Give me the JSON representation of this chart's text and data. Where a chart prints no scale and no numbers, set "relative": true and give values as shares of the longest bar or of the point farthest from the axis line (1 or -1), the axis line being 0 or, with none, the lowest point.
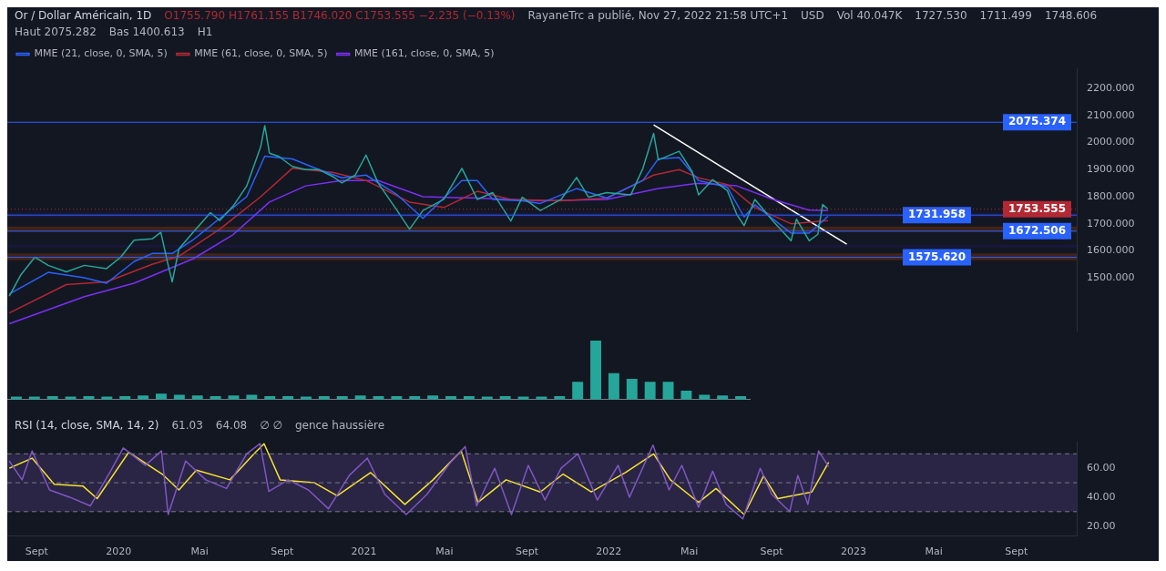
{
  "chart_data": [
    {
      "type": "line",
      "title": "Or / Dollar Américain, 1D",
      "subtitle": "O1755.790 H1761.155 B1746.020 C1753.555 −2.235 (−0.13%)",
      "annotations": [
        "RayaneTrc a publié, Nov 27, 2022 21:58 UTC+1",
        "USD",
        "Vol 40.047K",
        "1727.530",
        "1711.499",
        "1748.606",
        "Haut 2075.282",
        "Bas 1400.613",
        "H1"
      ],
      "xlim": [
        "2019-07-19",
        "2023-11-30"
      ],
      "ylim": [
        1300,
        2275
      ],
      "yticks": [
        {
          "value": 1500,
          "label": "1500.000"
        },
        {
          "value": 1600,
          "label": "1600.000"
        },
        {
          "value": 1700,
          "label": "1700.000"
        },
        {
          "value": 1800,
          "label": "1800.000"
        },
        {
          "value": 1900,
          "label": "1900.000"
        },
        {
          "value": 2000,
          "label": "2000.000"
        },
        {
          "value": 2100,
          "label": "2100.000"
        },
        {
          "value": 2200,
          "label": "2200.000"
        }
      ],
      "tick_labels": "y",
      "legend": "top left",
      "series": [
        {
          "color": "#26a69a",
          "x": [
            "2019-07-22",
            "2019-08-08",
            "2019-08-29",
            "2019-09-18",
            "2019-10-15",
            "2019-11-11",
            "2019-12-14",
            "2020-01-04",
            "2020-01-24",
            "2020-02-20",
            "2020-03-04",
            "2020-03-15",
            "2020-03-21",
            "2020-03-31",
            "2020-04-21",
            "2020-05-17",
            "2020-05-31",
            "2020-06-20",
            "2020-07-10",
            "2020-07-31",
            "2020-08-06",
            "2020-08-13",
            "2020-08-27",
            "2020-09-16",
            "2020-10-06",
            "2020-10-26",
            "2020-11-15",
            "2020-11-29",
            "2020-12-19",
            "2021-01-04",
            "2021-01-22",
            "2021-02-18",
            "2021-03-10",
            "2021-03-30",
            "2021-04-30",
            "2021-05-27",
            "2021-06-19",
            "2021-07-12",
            "2021-08-08",
            "2021-08-25",
            "2021-09-21",
            "2021-10-22",
            "2021-11-14",
            "2021-12-02",
            "2021-12-29",
            "2022-02-03",
            "2022-02-21",
            "2022-03-09",
            "2022-03-16",
            "2022-04-16",
            "2022-05-05",
            "2022-05-15",
            "2022-06-05",
            "2022-06-27",
            "2022-07-11",
            "2022-07-22",
            "2022-08-07",
            "2022-09-03",
            "2022-09-30",
            "2022-10-08",
            "2022-10-27",
            "2022-11-09",
            "2022-11-16",
            "2022-11-24"
          ],
          "values": [
            1432,
            1510,
            1576,
            1546,
            1522,
            1546,
            1534,
            1576,
            1639,
            1644,
            1668,
            1546,
            1485,
            1607,
            1668,
            1741,
            1712,
            1766,
            1839,
            1985,
            2063,
            1961,
            1949,
            1912,
            1900,
            1900,
            1875,
            1851,
            1880,
            1954,
            1851,
            1754,
            1680,
            1749,
            1790,
            1905,
            1790,
            1815,
            1710,
            1798,
            1749,
            1790,
            1871,
            1798,
            1815,
            1807,
            1905,
            2034,
            1936,
            1968,
            1895,
            1807,
            1863,
            1822,
            1734,
            1693,
            1790,
            1710,
            1637,
            1717,
            1637,
            1661,
            1771,
            1753.6
          ]
        },
        {
          "name": "MME (21, close, 0, SMA, 5)",
          "color": "#2962ff",
          "x": [
            "2019-07-22",
            "2019-09-18",
            "2019-11-11",
            "2019-12-14",
            "2020-01-24",
            "2020-02-20",
            "2020-03-21",
            "2020-04-21",
            "2020-05-31",
            "2020-07-10",
            "2020-08-06",
            "2020-09-16",
            "2020-10-26",
            "2020-11-29",
            "2021-01-04",
            "2021-02-18",
            "2021-03-30",
            "2021-05-27",
            "2021-06-19",
            "2021-07-12",
            "2021-08-25",
            "2021-09-21",
            "2021-11-14",
            "2021-12-29",
            "2022-02-21",
            "2022-03-16",
            "2022-04-16",
            "2022-05-15",
            "2022-06-27",
            "2022-07-22",
            "2022-08-07",
            "2022-09-30",
            "2022-10-27",
            "2022-11-24"
          ],
          "values": [
            1440,
            1520,
            1500,
            1480,
            1560,
            1590,
            1590,
            1640,
            1720,
            1800,
            1950,
            1940,
            1900,
            1870,
            1880,
            1810,
            1720,
            1860,
            1860,
            1790,
            1785,
            1775,
            1830,
            1795,
            1860,
            1940,
            1945,
            1860,
            1835,
            1725,
            1770,
            1665,
            1665,
            1727.5
          ]
        },
        {
          "name": "MME (61, close, 0, SMA, 5)",
          "color": "#b22833",
          "x": [
            "2019-07-22",
            "2019-10-15",
            "2019-12-14",
            "2020-02-20",
            "2020-03-31",
            "2020-05-31",
            "2020-07-31",
            "2020-09-16",
            "2020-11-15",
            "2021-01-04",
            "2021-03-10",
            "2021-04-30",
            "2021-06-19",
            "2021-08-08",
            "2021-10-22",
            "2021-12-29",
            "2022-03-09",
            "2022-04-16",
            "2022-05-15",
            "2022-06-27",
            "2022-08-07",
            "2022-09-30",
            "2022-11-24"
          ],
          "values": [
            1370,
            1475,
            1485,
            1550,
            1580,
            1680,
            1800,
            1905,
            1890,
            1860,
            1780,
            1760,
            1820,
            1790,
            1785,
            1795,
            1880,
            1900,
            1870,
            1845,
            1760,
            1700,
            1711.5
          ]
        },
        {
          "name": "MME (161, close, 0, SMA, 5)",
          "color": "#7b2ff7",
          "x": [
            "2019-07-22",
            "2019-11-11",
            "2020-01-24",
            "2020-04-21",
            "2020-06-20",
            "2020-08-13",
            "2020-10-06",
            "2020-11-29",
            "2021-01-22",
            "2021-03-30",
            "2021-06-19",
            "2021-09-21",
            "2021-12-29",
            "2022-03-16",
            "2022-05-15",
            "2022-07-11",
            "2022-09-03",
            "2022-10-27",
            "2022-11-24"
          ],
          "values": [
            1330,
            1430,
            1480,
            1570,
            1660,
            1780,
            1840,
            1860,
            1860,
            1800,
            1795,
            1785,
            1790,
            1830,
            1850,
            1840,
            1790,
            1750,
            1748.6
          ]
        },
        {
          "color": "#ffffff",
          "x": [
            "2022-03-09",
            "2022-12-22"
          ],
          "values": [
            2066,
            1624
          ]
        }
      ],
      "bands": [
        {
          "axis": "y",
          "from": 1670,
          "to": 1690,
          "color": "#e65100"
        },
        {
          "axis": "y",
          "from": 1565,
          "to": 1590,
          "color": "#e65100"
        },
        {
          "axis": "y",
          "from": 1722,
          "to": 1740,
          "color": "#311b92"
        },
        {
          "axis": "y",
          "from": 1612,
          "to": 1622,
          "color": "#311b92"
        }
      ],
      "ref_lines": [
        {
          "axis": "y",
          "value": 2075.374,
          "label": "2075.374",
          "color": "#2962ff",
          "line_style": "solid"
        },
        {
          "axis": "y",
          "value": 1731.958,
          "label": "1731.958",
          "color": "#2962ff",
          "line_style": "solid"
        },
        {
          "axis": "y",
          "value": 1672.506,
          "label": "1672.506",
          "color": "#2962ff",
          "line_style": "solid"
        },
        {
          "axis": "y",
          "value": 1575.62,
          "label": "1575.620",
          "color": "#2962ff",
          "line_style": "solid"
        },
        {
          "axis": "y",
          "value": 1753.555,
          "label": "1753.555",
          "color": "#b22833",
          "line_style": "dotted"
        }
      ]
    },
    {
      "type": "bar",
      "relative": true,
      "color": "#26a69a",
      "categories": [
        null,
        null,
        null,
        null,
        null,
        null,
        null,
        null,
        null,
        null,
        null,
        null,
        null,
        null,
        null,
        null,
        null,
        null,
        null,
        null,
        null,
        null,
        null,
        null,
        null,
        null,
        null,
        null,
        null,
        null,
        null,
        null,
        null,
        null,
        null,
        null,
        null,
        null,
        null,
        null,
        null
      ],
      "values": [
        0.05,
        0.05,
        0.06,
        0.05,
        0.06,
        0.05,
        0.06,
        0.07,
        0.1,
        0.08,
        0.07,
        0.06,
        0.07,
        0.08,
        0.06,
        0.06,
        0.05,
        0.06,
        0.06,
        0.07,
        0.06,
        0.06,
        0.06,
        0.07,
        0.06,
        0.06,
        0.05,
        0.06,
        0.05,
        0.05,
        0.06,
        0.3,
        1,
        0.45,
        0.35,
        0.3,
        0.3,
        0.15,
        0.08,
        0.07,
        0.06
      ]
    },
    {
      "type": "line",
      "title": "RSI (14, close, SMA, 14, 2)",
      "annotations": [
        "61.03",
        "64.08",
        "∅ ∅",
        "gence haussière"
      ],
      "xlim": [
        "2019-07-19",
        "2023-11-30"
      ],
      "xticks": [
        {
          "value": "2019-09-01",
          "label": "Sept"
        },
        {
          "value": "2020-01-01",
          "label": "2020"
        },
        {
          "value": "2020-05-01",
          "label": "Mai"
        },
        {
          "value": "2020-09-01",
          "label": "Sept"
        },
        {
          "value": "2021-01-01",
          "label": "2021"
        },
        {
          "value": "2021-05-01",
          "label": "Mai"
        },
        {
          "value": "2021-09-01",
          "label": "Sept"
        },
        {
          "value": "2022-01-01",
          "label": "2022"
        },
        {
          "value": "2022-05-01",
          "label": "Mai"
        },
        {
          "value": "2022-09-01",
          "label": "Sept"
        },
        {
          "value": "2023-01-01",
          "label": "2023"
        },
        {
          "value": "2023-05-01",
          "label": "Mai"
        },
        {
          "value": "2023-09-01",
          "label": "Sept"
        }
      ],
      "ylim": [
        13,
        78
      ],
      "yticks": [
        {
          "value": 20,
          "label": "20.00"
        },
        {
          "value": 40,
          "label": "40.00"
        },
        {
          "value": 60,
          "label": "60.00"
        }
      ],
      "series": [
        {
          "color": "#7e57c2",
          "x": [
            "2019-07-22",
            "2019-08-10",
            "2019-08-25",
            "2019-09-20",
            "2019-10-20",
            "2019-11-20",
            "2019-12-20",
            "2020-01-08",
            "2020-02-10",
            "2020-03-05",
            "2020-03-15",
            "2020-04-10",
            "2020-05-10",
            "2020-06-10",
            "2020-07-10",
            "2020-07-30",
            "2020-08-12",
            "2020-09-10",
            "2020-10-10",
            "2020-11-09",
            "2020-12-10",
            "2021-01-06",
            "2021-02-01",
            "2021-03-05",
            "2021-04-05",
            "2021-05-10",
            "2021-06-01",
            "2021-06-18",
            "2021-07-15",
            "2021-08-09",
            "2021-09-03",
            "2021-09-28",
            "2021-10-22",
            "2021-11-16",
            "2021-12-15",
            "2022-01-15",
            "2022-02-01",
            "2022-03-08",
            "2022-04-01",
            "2022-04-20",
            "2022-05-15",
            "2022-06-05",
            "2022-06-25",
            "2022-07-20",
            "2022-08-15",
            "2022-09-01",
            "2022-09-28",
            "2022-10-10",
            "2022-10-25",
            "2022-11-10",
            "2022-11-25"
          ],
          "values": [
            65,
            52,
            72,
            45,
            40,
            34,
            58,
            74,
            62,
            72,
            28,
            65,
            52,
            46,
            70,
            77,
            44,
            52,
            45,
            32,
            55,
            67,
            42,
            28,
            42,
            64,
            75,
            34,
            60,
            28,
            62,
            38,
            60,
            70,
            38,
            62,
            40,
            76,
            45,
            62,
            33,
            58,
            35,
            25,
            60,
            42,
            30,
            55,
            35,
            72,
            61.0
          ]
        },
        {
          "color": "#f5e52f",
          "x": [
            "2019-07-22",
            "2019-08-25",
            "2019-09-27",
            "2019-11-09",
            "2019-11-30",
            "2020-01-16",
            "2020-03-06",
            "2020-03-31",
            "2020-04-26",
            "2020-06-15",
            "2020-07-23",
            "2020-08-05",
            "2020-08-29",
            "2020-10-19",
            "2020-11-22",
            "2021-01-11",
            "2021-03-03",
            "2021-04-14",
            "2021-05-26",
            "2021-06-20",
            "2021-08-01",
            "2021-09-21",
            "2021-10-25",
            "2021-12-06",
            "2022-01-26",
            "2022-03-09",
            "2022-04-03",
            "2022-05-15",
            "2022-06-10",
            "2022-07-22",
            "2022-08-20",
            "2022-09-10",
            "2022-10-31",
            "2022-11-25"
          ],
          "values": [
            60,
            67,
            49,
            47.6,
            39,
            71,
            56,
            45,
            58.7,
            52,
            71,
            77,
            52,
            50,
            41,
            57,
            35,
            52,
            72,
            36.4,
            52,
            43.6,
            56,
            43.6,
            57,
            70,
            52,
            36.4,
            46,
            28,
            54.7,
            39,
            43.6,
            64.1
          ]
        }
      ],
      "bands": [
        {
          "axis": "y",
          "from": 30,
          "to": 70,
          "color": "#7e57c2"
        }
      ],
      "ref_lines": [
        {
          "axis": "y",
          "value": 70,
          "color": "#787b86",
          "line_style": "dashed"
        },
        {
          "axis": "y",
          "value": 50,
          "color": "#787b86",
          "line_style": "dashed"
        },
        {
          "axis": "y",
          "value": 30,
          "color": "#787b86",
          "line_style": "dashed"
        }
      ]
    }
  ]
}
